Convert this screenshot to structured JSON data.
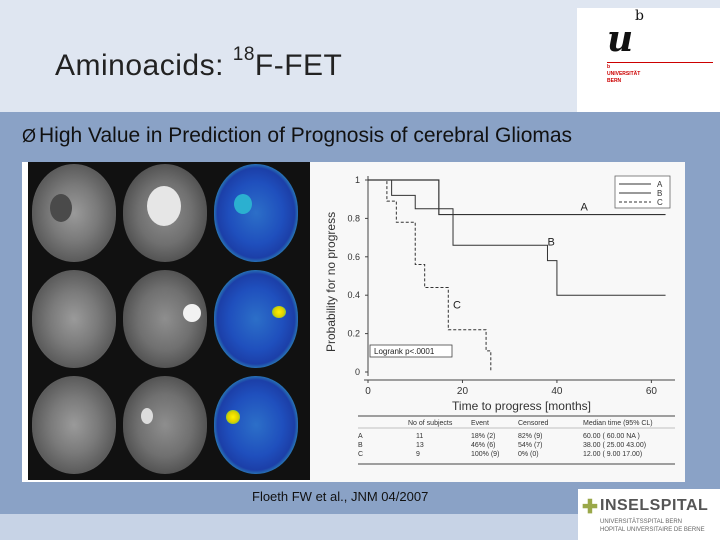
{
  "slide": {
    "title_prefix": "Aminoacids: ",
    "title_sup": "18",
    "title_suffix": "F-FET",
    "bullet_arrow": "Ø",
    "bullet": "High Value in Prediction of Prognosis of cerebral Gliomas",
    "citation": "Floeth FW et al., JNM 04/2007"
  },
  "logos": {
    "unibern_u": "u",
    "unibern_b": "b",
    "unibern_line1": "UNIVERSITÄT",
    "unibern_line2": "BERN",
    "insel_name": "INSELSPITAL",
    "insel_sub1": "UNIVERSITÄTSSPITAL BERN",
    "insel_sub2": "HOPITAL UNIVERSITAIRE DE BERNE"
  },
  "figure": {
    "logrank": "Logrank p<.0001",
    "table_headers": [
      "No of subjects",
      "Event",
      "Censored",
      "Median time (95% CL)"
    ],
    "table_rows": [
      [
        "A",
        "11",
        "18% (2)",
        "82% (9)",
        "60.00 ( 60.00   NA )"
      ],
      [
        "B",
        "13",
        "46% (6)",
        "54% (7)",
        "38.00 ( 25.00   43.00)"
      ],
      [
        "C",
        "9",
        "100% (9)",
        "0% (0)",
        "12.00 ( 9.00   17.00)"
      ]
    ]
  },
  "chart_data": {
    "type": "line",
    "title": "",
    "xlabel": "Time to progress [months]",
    "ylabel": "Probability for no progress",
    "xlim": [
      0,
      65
    ],
    "ylim": [
      0,
      1
    ],
    "x_ticks": [
      0,
      20,
      40,
      60
    ],
    "y_ticks": [
      0,
      0.2,
      0.4,
      0.6,
      0.8,
      1
    ],
    "legend": [
      "A",
      "B",
      "C"
    ],
    "legend_position": "top-right",
    "series": [
      {
        "name": "A",
        "x": [
          0,
          8,
          15,
          42,
          46,
          63
        ],
        "y": [
          1,
          1,
          0.82,
          0.82,
          0.82,
          0.82
        ]
      },
      {
        "name": "B",
        "x": [
          0,
          5,
          10,
          18,
          38,
          40,
          43,
          63
        ],
        "y": [
          1,
          0.92,
          0.85,
          0.66,
          0.58,
          0.4,
          0.4,
          0.4
        ]
      },
      {
        "name": "C",
        "x": [
          0,
          4,
          6,
          10,
          12,
          17,
          25,
          26
        ],
        "y": [
          1,
          0.89,
          0.78,
          0.56,
          0.44,
          0.22,
          0.11,
          0
        ]
      }
    ],
    "annotations": [
      "A",
      "B",
      "C"
    ]
  }
}
